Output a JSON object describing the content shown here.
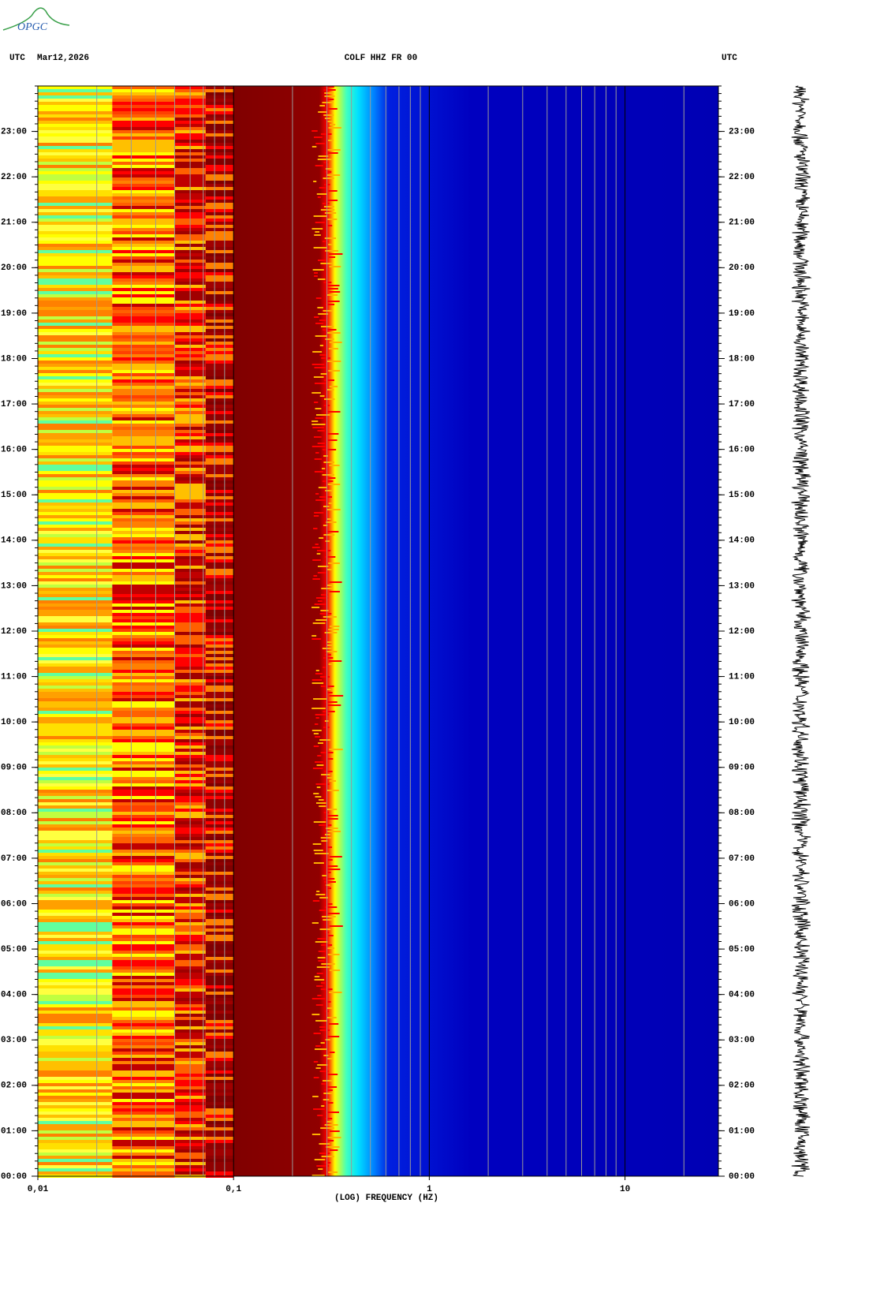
{
  "logo": "OPGC",
  "chart_data": {
    "type": "spectrogram",
    "title": "COLF HHZ FR 00",
    "date": "Mar12,2026",
    "left_label": "UTC",
    "right_label": "UTC",
    "xlabel": "(LOG) FREQUENCY (HZ)",
    "xscale": "log",
    "xlim": [
      0.01,
      30
    ],
    "xticks": [
      {
        "value": 0.01,
        "label": "0,01"
      },
      {
        "value": 0.1,
        "label": "0,1"
      },
      1,
      10
    ],
    "ylim": [
      0,
      24
    ],
    "yticks": [
      {
        "value": 0,
        "label": "00:00"
      },
      {
        "value": 1,
        "label": "01:00"
      },
      {
        "value": 2,
        "label": "02:00"
      },
      {
        "value": 3,
        "label": "03:00"
      },
      {
        "value": 4,
        "label": "04:00"
      },
      {
        "value": 5,
        "label": "05:00"
      },
      {
        "value": 6,
        "label": "06:00"
      },
      {
        "value": 7,
        "label": "07:00"
      },
      {
        "value": 8,
        "label": "08:00"
      },
      {
        "value": 9,
        "label": "09:00"
      },
      {
        "value": 10,
        "label": "10:00"
      },
      {
        "value": 11,
        "label": "11:00"
      },
      {
        "value": 12,
        "label": "12:00"
      },
      {
        "value": 13,
        "label": "13:00"
      },
      {
        "value": 14,
        "label": "14:00"
      },
      {
        "value": 15,
        "label": "15:00"
      },
      {
        "value": 16,
        "label": "16:00"
      },
      {
        "value": 17,
        "label": "17:00"
      },
      {
        "value": 18,
        "label": "18:00"
      },
      {
        "value": 19,
        "label": "19:00"
      },
      {
        "value": 20,
        "label": "20:00"
      },
      {
        "value": 21,
        "label": "21:00"
      },
      {
        "value": 22,
        "label": "22:00"
      },
      {
        "value": 23,
        "label": "23:00"
      }
    ]
  }
}
